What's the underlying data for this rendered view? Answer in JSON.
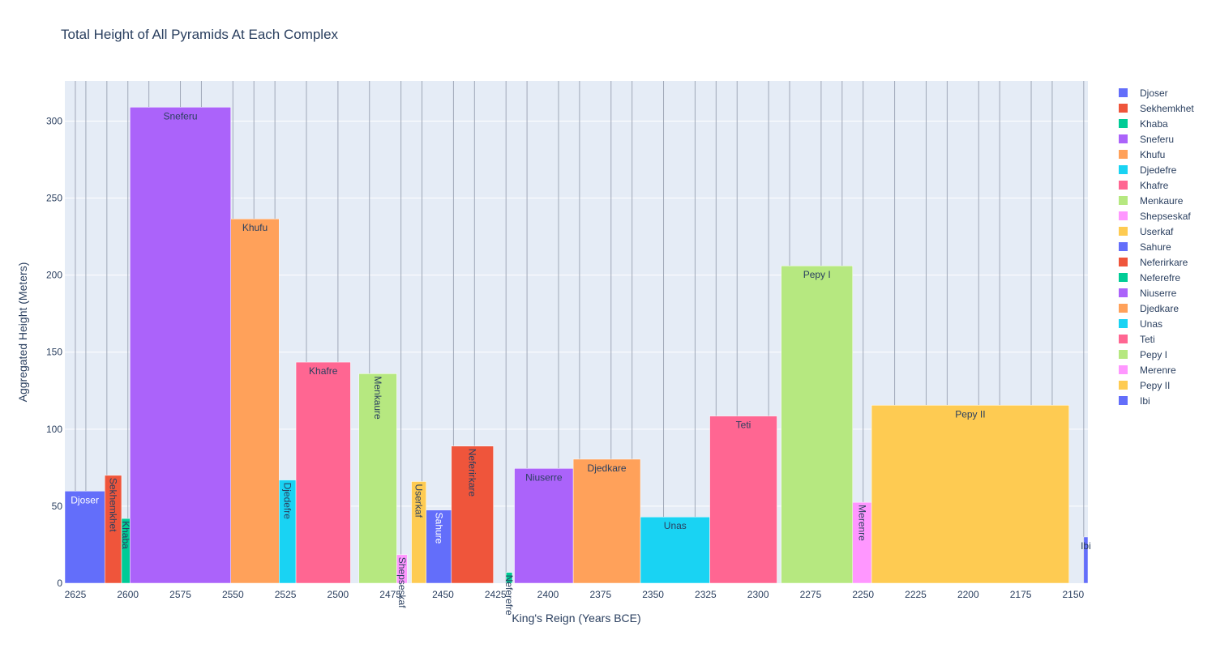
{
  "chart_data": {
    "type": "bar",
    "title": "Total Height of All Pyramids At Each Complex",
    "xlabel": "King's Reign (Years BCE)",
    "ylabel": "Aggregated Height (Meters)",
    "x_reversed": true,
    "xlim": [
      2630,
      2143
    ],
    "ylim": [
      0,
      326
    ],
    "grid": true,
    "legend_position": "top-right",
    "x_ticks": [
      2625,
      2600,
      2575,
      2550,
      2525,
      2500,
      2475,
      2450,
      2425,
      2400,
      2375,
      2350,
      2325,
      2300,
      2275,
      2250,
      2225,
      2200,
      2175,
      2150
    ],
    "y_ticks": [
      0,
      50,
      100,
      150,
      200,
      250,
      300
    ],
    "reign_gridlines": [
      2625,
      2620,
      2610,
      2600,
      2590,
      2575,
      2565,
      2550,
      2540,
      2530,
      2515,
      2500,
      2485,
      2470,
      2460,
      2445,
      2435,
      2420,
      2410,
      2395,
      2385,
      2370,
      2360,
      2345,
      2330,
      2320,
      2310,
      2295,
      2285,
      2270,
      2260,
      2250,
      2235,
      2220,
      2210,
      2195,
      2185,
      2170,
      2160,
      2145
    ],
    "series": [
      {
        "name": "Djoser",
        "start": 2630,
        "end": 2611,
        "value": 59.8,
        "color": "#636efa",
        "label_orientation": "horizontal",
        "label_color": "#ffffff"
      },
      {
        "name": "Sekhemkhet",
        "start": 2611,
        "end": 2603,
        "value": 70,
        "color": "#ef553b",
        "label_orientation": "vertical",
        "label_color": "#2a3f5f"
      },
      {
        "name": "Khaba",
        "start": 2603,
        "end": 2599,
        "value": 42,
        "color": "#00cc96",
        "label_orientation": "vertical",
        "label_color": "#2a3f5f"
      },
      {
        "name": "Sneferu",
        "start": 2599,
        "end": 2551,
        "value": 309,
        "color": "#ab63fa",
        "label_orientation": "horizontal",
        "label_color": "#2a3f5f"
      },
      {
        "name": "Khufu",
        "start": 2551,
        "end": 2528,
        "value": 236.5,
        "color": "#ffa15a",
        "label_orientation": "horizontal",
        "label_color": "#2a3f5f"
      },
      {
        "name": "Djedefre",
        "start": 2528,
        "end": 2520,
        "value": 67,
        "color": "#19d3f3",
        "label_orientation": "vertical",
        "label_color": "#2a3f5f"
      },
      {
        "name": "Khafre",
        "start": 2520,
        "end": 2494,
        "value": 143.5,
        "color": "#ff6692",
        "label_orientation": "horizontal",
        "label_color": "#2a3f5f"
      },
      {
        "name": "Menkaure",
        "start": 2490,
        "end": 2472,
        "value": 136,
        "color": "#b6e880",
        "label_orientation": "vertical",
        "label_color": "#2a3f5f"
      },
      {
        "name": "Shepseskaf",
        "start": 2472,
        "end": 2467,
        "value": 18.5,
        "color": "#ff97ff",
        "label_orientation": "vertical",
        "label_color": "#2a3f5f"
      },
      {
        "name": "Userkaf",
        "start": 2465,
        "end": 2458,
        "value": 66,
        "color": "#fecb52",
        "label_orientation": "vertical",
        "label_color": "#2a3f5f"
      },
      {
        "name": "Sahure",
        "start": 2458,
        "end": 2446,
        "value": 47.5,
        "color": "#636efa",
        "label_orientation": "vertical",
        "label_color": "#ffffff"
      },
      {
        "name": "Neferirkare",
        "start": 2446,
        "end": 2426,
        "value": 89,
        "color": "#ef553b",
        "label_orientation": "vertical",
        "label_color": "#2a3f5f"
      },
      {
        "name": "Neferefre",
        "start": 2420,
        "end": 2417,
        "value": 7,
        "color": "#00cc96",
        "label_orientation": "vertical",
        "label_color": "#2a3f5f"
      },
      {
        "name": "Niuserre",
        "start": 2416,
        "end": 2388,
        "value": 74.5,
        "color": "#ab63fa",
        "label_orientation": "horizontal",
        "label_color": "#2a3f5f"
      },
      {
        "name": "Djedkare",
        "start": 2388,
        "end": 2356,
        "value": 80.5,
        "color": "#ffa15a",
        "label_orientation": "horizontal",
        "label_color": "#2a3f5f"
      },
      {
        "name": "Unas",
        "start": 2356,
        "end": 2323,
        "value": 43,
        "color": "#19d3f3",
        "label_orientation": "horizontal",
        "label_color": "#2a3f5f"
      },
      {
        "name": "Teti",
        "start": 2323,
        "end": 2291,
        "value": 108.5,
        "color": "#ff6692",
        "label_orientation": "horizontal",
        "label_color": "#2a3f5f"
      },
      {
        "name": "Pepy I",
        "start": 2289,
        "end": 2255,
        "value": 206,
        "color": "#b6e880",
        "label_orientation": "horizontal",
        "label_color": "#2a3f5f"
      },
      {
        "name": "Merenre",
        "start": 2255,
        "end": 2246,
        "value": 52.5,
        "color": "#ff97ff",
        "label_orientation": "vertical",
        "label_color": "#2a3f5f"
      },
      {
        "name": "Pepy II",
        "start": 2246,
        "end": 2152,
        "value": 115.5,
        "color": "#fecb52",
        "label_orientation": "horizontal",
        "label_color": "#2a3f5f"
      },
      {
        "name": "Ibi",
        "start": 2145,
        "end": 2143,
        "value": 30,
        "color": "#636efa",
        "label_orientation": "horizontal",
        "label_color": "#2a3f5f"
      }
    ]
  }
}
